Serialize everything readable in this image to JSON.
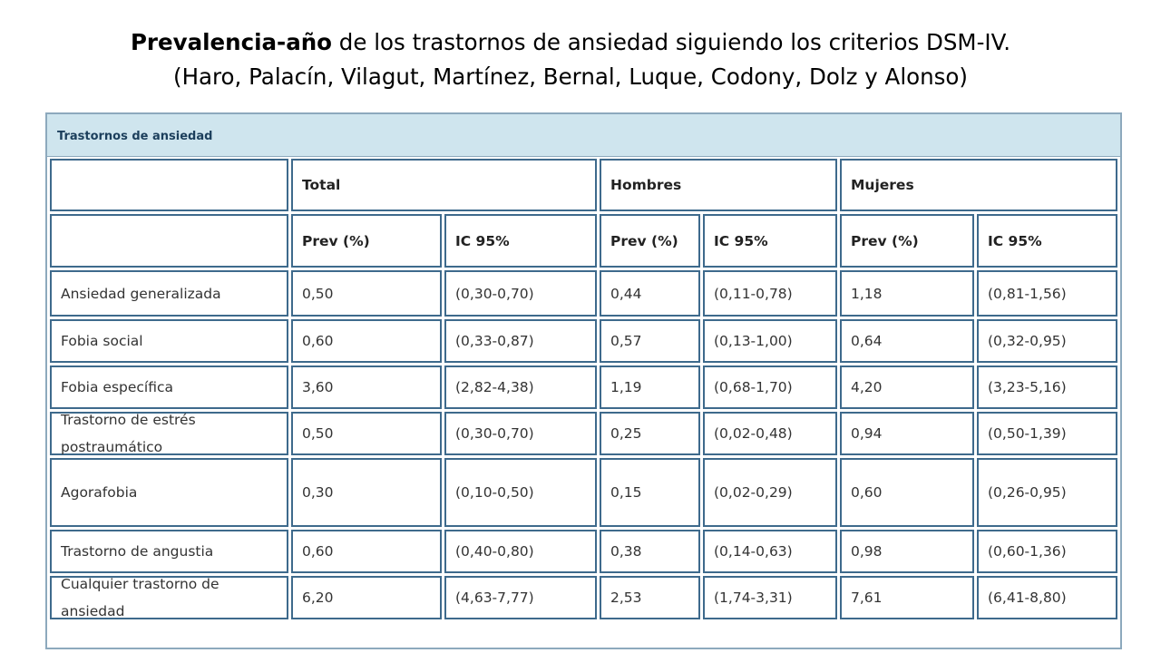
{
  "title": {
    "bold_part": "Prevalencia-año",
    "rest_line1": " de los trastornos de ansiedad siguiendo los criterios DSM-IV.",
    "line2": "(Haro, Palacín, Vilagut, Martínez, Bernal, Luque, Codony,  Dolz y Alonso)"
  },
  "table": {
    "caption": "Trastornos de ansiedad",
    "groups": [
      "Total",
      "Hombres",
      "Mujeres"
    ],
    "subheaders": [
      "Prev (%)",
      "IC 95%",
      "Prev (%)",
      "IC 95%",
      "Prev (%)",
      "IC 95%"
    ],
    "rows": [
      {
        "label": "Ansiedad generalizada",
        "values": [
          "0,50",
          "(0,30-0,70)",
          "0,44",
          "(0,11-0,78)",
          "1,18",
          "(0,81-1,56)"
        ]
      },
      {
        "label": "Fobia social",
        "values": [
          "0,60",
          "(0,33-0,87)",
          "0,57",
          "(0,13-1,00)",
          "0,64",
          "(0,32-0,95)"
        ]
      },
      {
        "label": "Fobia específica",
        "values": [
          "3,60",
          "(2,82-4,38)",
          "1,19",
          "(0,68-1,70)",
          "4,20",
          "(3,23-5,16)"
        ]
      },
      {
        "label_lines": [
          "Trastorno de estrés",
          "postraumático"
        ],
        "values": [
          "0,50",
          "(0,30-0,70)",
          "0,25",
          "(0,02-0,48)",
          "0,94",
          "(0,50-1,39)"
        ]
      },
      {
        "label": "Agorafobia",
        "values": [
          "0,30",
          "(0,10-0,50)",
          "0,15",
          "(0,02-0,29)",
          "0,60",
          "(0,26-0,95)"
        ]
      },
      {
        "label": "Trastorno de angustia",
        "values": [
          "0,60",
          "(0,40-0,80)",
          "0,38",
          "(0,14-0,63)",
          "0,98",
          "(0,60-1,36)"
        ]
      },
      {
        "label_lines": [
          "Cualquier trastorno de",
          "ansiedad"
        ],
        "values": [
          "6,20",
          "(4,63-7,77)",
          "2,53",
          "(1,74-3,31)",
          "7,61",
          "(6,41-8,80)"
        ]
      }
    ]
  }
}
